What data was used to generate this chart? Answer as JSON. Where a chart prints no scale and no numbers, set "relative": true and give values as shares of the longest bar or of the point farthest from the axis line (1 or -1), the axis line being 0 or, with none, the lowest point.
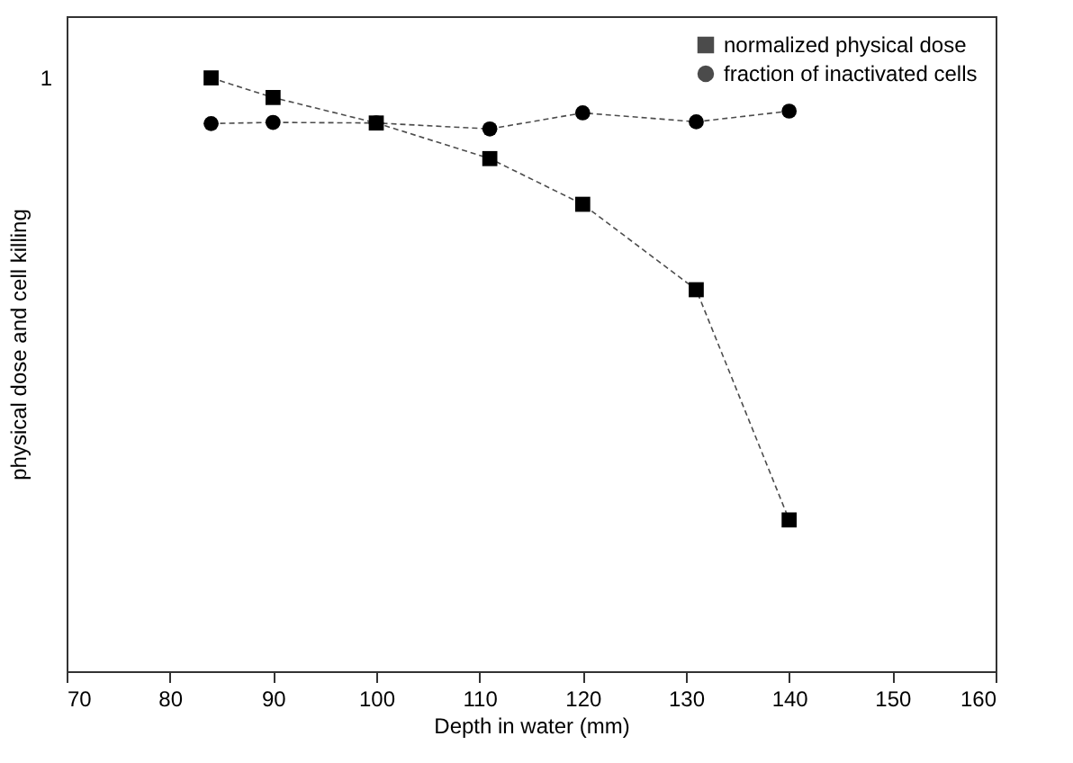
{
  "chart_data": {
    "type": "line",
    "xlabel": "Depth in water (mm)",
    "ylabel": "physical dose and cell killing",
    "x": [
      84,
      90,
      100,
      111,
      120,
      131,
      140
    ],
    "series": [
      {
        "name": "normalized physical dose",
        "color": "#000000",
        "marker": "square",
        "values": [
          1.0,
          0.967,
          0.924,
          0.864,
          0.787,
          0.643,
          0.255
        ]
      },
      {
        "name": "fraction of inactivated cells",
        "color": "#000000",
        "marker": "circle",
        "values": [
          0.923,
          0.925,
          0.924,
          0.914,
          0.941,
          0.926,
          0.944
        ]
      }
    ],
    "relative": true,
    "annotations": [
      "1"
    ],
    "xlim": [
      70,
      160
    ],
    "xticks": [
      70,
      80,
      90,
      100,
      110,
      120,
      130,
      140,
      150,
      160
    ],
    "legend": "top right",
    "line_style": "dashed"
  }
}
